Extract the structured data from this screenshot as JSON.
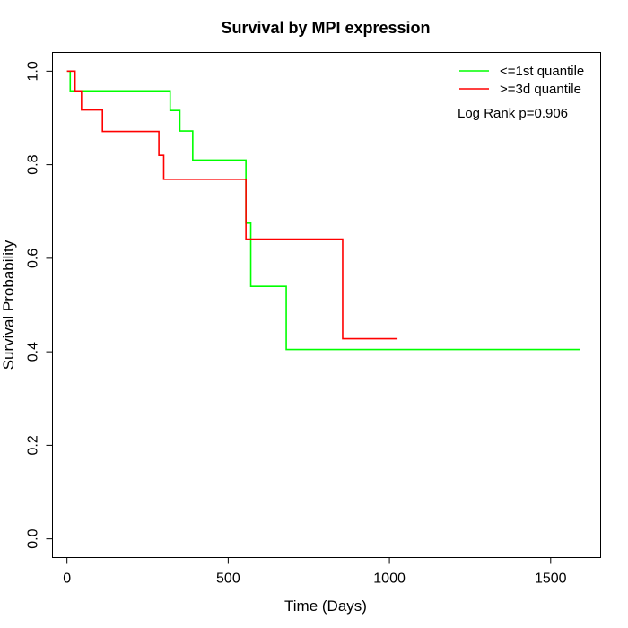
{
  "chart_data": {
    "type": "line",
    "title": "Survival by MPI expression",
    "xlabel": "Time (Days)",
    "ylabel": "Survival Probability",
    "xlim": [
      -45,
      1655
    ],
    "ylim": [
      -0.04,
      1.04
    ],
    "x_ticks": [
      0,
      500,
      1000,
      1500
    ],
    "y_ticks": [
      0.0,
      0.2,
      0.4,
      0.6,
      0.8,
      1.0
    ],
    "x_tick_labels": [
      "0",
      "500",
      "1000",
      "1500"
    ],
    "y_tick_labels": [
      "0.0",
      "0.2",
      "0.4",
      "0.6",
      "0.8",
      "1.0"
    ],
    "grid": false,
    "legend_position": "top-right",
    "annotation": "Log Rank p=0.906",
    "series": [
      {
        "name": "<=1st quantile",
        "color": "#00ff00",
        "step": true,
        "x": [
          0,
          10,
          320,
          350,
          390,
          555,
          560,
          570,
          680,
          1590
        ],
        "y": [
          1.0,
          0.958,
          0.916,
          0.872,
          0.81,
          0.675,
          0.675,
          0.54,
          0.405,
          0.405
        ]
      },
      {
        "name": ">=3d quantile",
        "color": "#ff0000",
        "step": true,
        "x": [
          0,
          25,
          45,
          110,
          285,
          300,
          555,
          855,
          1025
        ],
        "y": [
          1.0,
          0.958,
          0.917,
          0.871,
          0.82,
          0.769,
          0.641,
          0.428,
          0.428
        ]
      }
    ]
  }
}
